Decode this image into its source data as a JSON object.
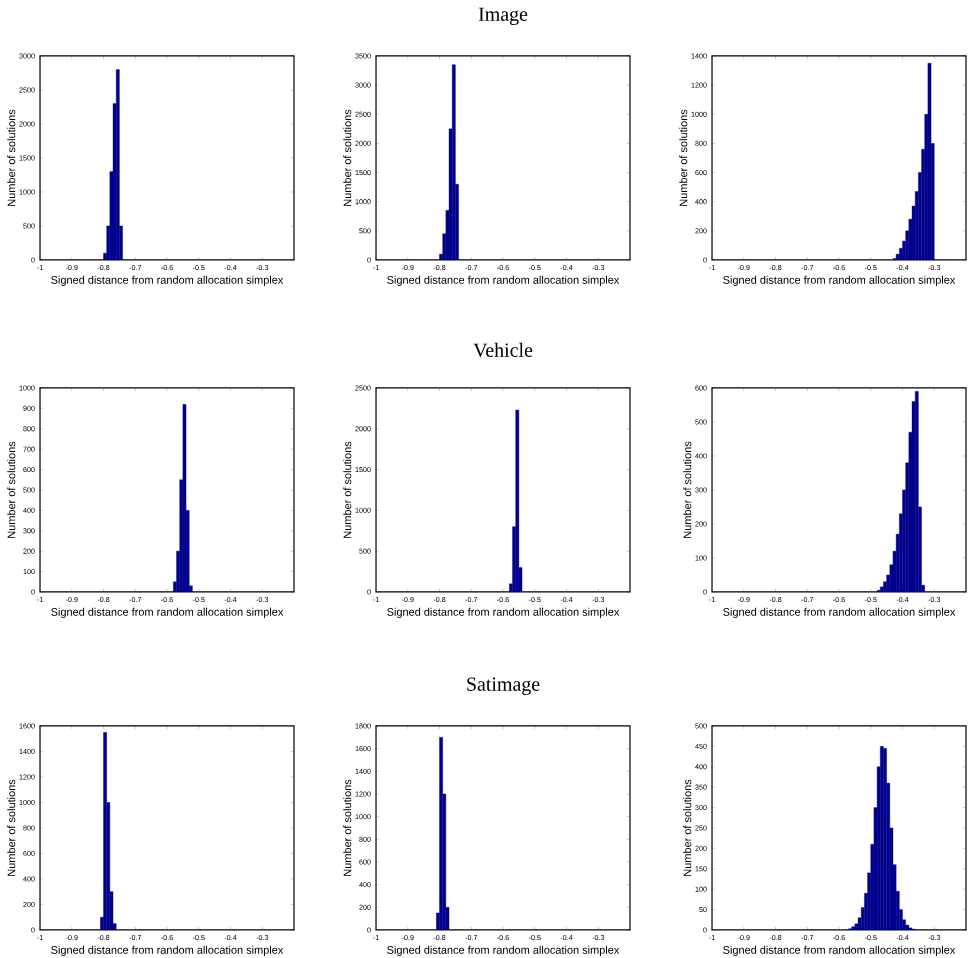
{
  "chart_data": [
    {
      "type": "histogram",
      "xlabel": "Signed distance from random allocation simplex",
      "ylabel": "Number of solutions",
      "color": "#00008b",
      "xlim": [
        -1,
        -0.2
      ],
      "xticks": [
        -1,
        -0.9,
        -0.8,
        -0.7,
        -0.6,
        -0.5,
        -0.4,
        -0.3
      ],
      "ylim": [
        0,
        3000
      ],
      "yticks": [
        0,
        500,
        1000,
        1500,
        2000,
        2500,
        3000
      ],
      "bins": [
        -0.8,
        -0.79,
        -0.78,
        -0.77,
        -0.76,
        -0.75,
        -0.74
      ],
      "values": [
        100,
        500,
        1300,
        2300,
        2800,
        500
      ]
    },
    {
      "type": "histogram",
      "title": "Image",
      "xlabel": "Signed distance from random allocation simplex",
      "ylabel": "Number of solutions",
      "color": "#00008b",
      "xlim": [
        -1,
        -0.2
      ],
      "xticks": [
        -1,
        -0.9,
        -0.8,
        -0.7,
        -0.6,
        -0.5,
        -0.4,
        -0.3
      ],
      "ylim": [
        0,
        3500
      ],
      "yticks": [
        0,
        500,
        1000,
        1500,
        2000,
        2500,
        3000,
        3500
      ],
      "bins": [
        -0.8,
        -0.79,
        -0.78,
        -0.77,
        -0.76,
        -0.75,
        -0.74
      ],
      "values": [
        100,
        450,
        850,
        2250,
        3350,
        1300
      ]
    },
    {
      "type": "histogram",
      "xlabel": "Signed distance from random allocation simplex",
      "ylabel": "Number of solutions",
      "color": "#00008b",
      "xlim": [
        -1,
        -0.2
      ],
      "xticks": [
        -1,
        -0.9,
        -0.8,
        -0.7,
        -0.6,
        -0.5,
        -0.4,
        -0.3
      ],
      "ylim": [
        0,
        1400
      ],
      "yticks": [
        0,
        200,
        400,
        600,
        800,
        1000,
        1200,
        1400
      ],
      "bins": [
        -0.43,
        -0.42,
        -0.41,
        -0.4,
        -0.39,
        -0.38,
        -0.37,
        -0.36,
        -0.35,
        -0.34,
        -0.33,
        -0.32,
        -0.31,
        -0.3
      ],
      "values": [
        10,
        40,
        80,
        130,
        200,
        280,
        370,
        470,
        600,
        760,
        1000,
        1350,
        800
      ]
    },
    {
      "type": "histogram",
      "xlabel": "Signed distance from random allocation simplex",
      "ylabel": "Number of solutions",
      "color": "#00008b",
      "xlim": [
        -1,
        -0.2
      ],
      "xticks": [
        -1,
        -0.9,
        -0.8,
        -0.7,
        -0.6,
        -0.5,
        -0.4,
        -0.3
      ],
      "ylim": [
        0,
        1000
      ],
      "yticks": [
        0,
        100,
        200,
        300,
        400,
        500,
        600,
        700,
        800,
        900,
        1000
      ],
      "bins": [
        -0.58,
        -0.57,
        -0.56,
        -0.55,
        -0.54,
        -0.53,
        -0.52
      ],
      "values": [
        50,
        200,
        550,
        920,
        400,
        30
      ]
    },
    {
      "type": "histogram",
      "title": "Vehicle",
      "xlabel": "Signed distance from random allocation simplex",
      "ylabel": "Number of solutions",
      "color": "#00008b",
      "xlim": [
        -1,
        -0.2
      ],
      "xticks": [
        -1,
        -0.9,
        -0.8,
        -0.7,
        -0.6,
        -0.5,
        -0.4,
        -0.3
      ],
      "ylim": [
        0,
        2500
      ],
      "yticks": [
        0,
        500,
        1000,
        1500,
        2000,
        2500
      ],
      "bins": [
        -0.58,
        -0.57,
        -0.56,
        -0.55,
        -0.54
      ],
      "values": [
        100,
        800,
        2230,
        300
      ]
    },
    {
      "type": "histogram",
      "xlabel": "Signed distance from random allocation simplex",
      "ylabel": "Number of solutions",
      "color": "#00008b",
      "xlim": [
        -1,
        -0.2
      ],
      "xticks": [
        -1,
        -0.9,
        -0.8,
        -0.7,
        -0.6,
        -0.5,
        -0.4,
        -0.3
      ],
      "ylim": [
        0,
        600
      ],
      "yticks": [
        0,
        100,
        200,
        300,
        400,
        500,
        600
      ],
      "bins": [
        -0.48,
        -0.47,
        -0.46,
        -0.45,
        -0.44,
        -0.43,
        -0.42,
        -0.41,
        -0.4,
        -0.39,
        -0.38,
        -0.37,
        -0.36,
        -0.35,
        -0.34,
        -0.33
      ],
      "values": [
        5,
        15,
        30,
        50,
        80,
        120,
        170,
        230,
        300,
        380,
        470,
        560,
        590,
        250,
        20
      ]
    },
    {
      "type": "histogram",
      "xlabel": "Signed distance from random allocation simplex",
      "ylabel": "Number of solutions",
      "color": "#00008b",
      "xlim": [
        -1,
        -0.2
      ],
      "xticks": [
        -1,
        -0.9,
        -0.8,
        -0.7,
        -0.6,
        -0.5,
        -0.4,
        -0.3
      ],
      "ylim": [
        0,
        1600
      ],
      "yticks": [
        0,
        200,
        400,
        600,
        800,
        1000,
        1200,
        1400,
        1600
      ],
      "bins": [
        -0.81,
        -0.8,
        -0.79,
        -0.78,
        -0.77,
        -0.76
      ],
      "values": [
        100,
        1550,
        1000,
        300,
        50
      ]
    },
    {
      "type": "histogram",
      "title": "Satimage",
      "xlabel": "Signed distance from random allocation simplex",
      "ylabel": "Number of solutions",
      "color": "#00008b",
      "xlim": [
        -1,
        -0.2
      ],
      "xticks": [
        -1,
        -0.9,
        -0.8,
        -0.7,
        -0.6,
        -0.5,
        -0.4,
        -0.3
      ],
      "ylim": [
        0,
        1800
      ],
      "yticks": [
        0,
        200,
        400,
        600,
        800,
        1000,
        1200,
        1400,
        1600,
        1800
      ],
      "bins": [
        -0.81,
        -0.8,
        -0.79,
        -0.78,
        -0.77
      ],
      "values": [
        150,
        1700,
        1200,
        200
      ]
    },
    {
      "type": "histogram",
      "xlabel": "Signed distance from random allocation simplex",
      "ylabel": "Number of solutions",
      "color": "#00008b",
      "xlim": [
        -1,
        -0.2
      ],
      "xticks": [
        -1,
        -0.9,
        -0.8,
        -0.7,
        -0.6,
        -0.5,
        -0.4,
        -0.3
      ],
      "ylim": [
        0,
        500
      ],
      "yticks": [
        0,
        50,
        100,
        150,
        200,
        250,
        300,
        350,
        400,
        450,
        500
      ],
      "bins": [
        -0.57,
        -0.56,
        -0.55,
        -0.54,
        -0.53,
        -0.52,
        -0.51,
        -0.5,
        -0.49,
        -0.48,
        -0.47,
        -0.46,
        -0.45,
        -0.44,
        -0.43,
        -0.42,
        -0.41,
        -0.4,
        -0.39,
        -0.38,
        -0.37,
        -0.36
      ],
      "values": [
        3,
        8,
        15,
        30,
        55,
        90,
        140,
        210,
        300,
        400,
        450,
        445,
        360,
        250,
        160,
        95,
        50,
        25,
        12,
        5,
        2
      ]
    }
  ]
}
